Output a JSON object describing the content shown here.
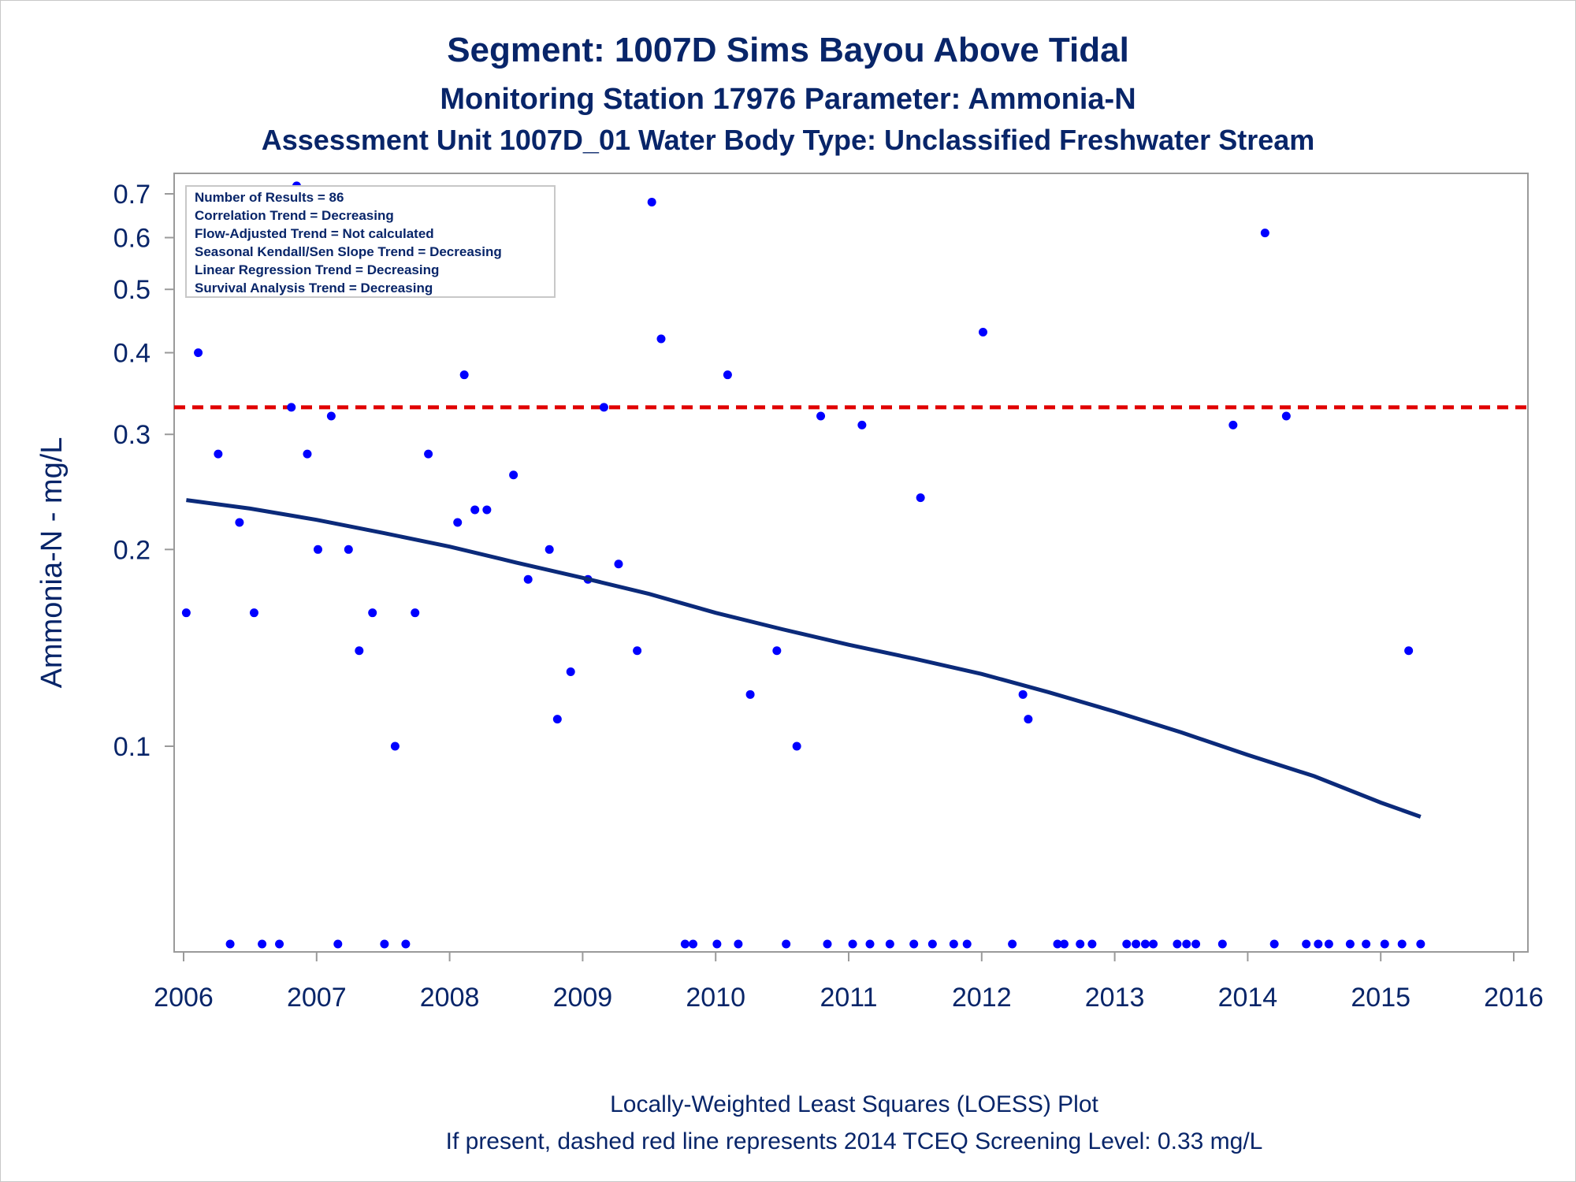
{
  "titles": {
    "line1": "Segment: 1007D  Sims Bayou Above Tidal",
    "line2": "Monitoring Station 17976 Parameter: Ammonia-N",
    "line3": "Assessment Unit 1007D_01   Water Body Type: Unclassified Freshwater Stream"
  },
  "stats_box": [
    "Number of Results = 86",
    "Correlation Trend = Decreasing",
    "Flow-Adjusted Trend = Not calculated",
    "Seasonal Kendall/Sen Slope Trend = Decreasing",
    "Linear Regression Trend = Decreasing",
    "Survival Analysis Trend = Decreasing"
  ],
  "footnotes": {
    "line1": "Locally-Weighted Least Squares (LOESS) Plot",
    "line2": "If present, dashed red line represents 2014 TCEQ Screening Level: 0.33 mg/L"
  },
  "colors": {
    "text": "#082569",
    "points": "#0000ff",
    "loess": "#0b2a7a",
    "screening": "#e00000",
    "frame": "#9a9a9a"
  },
  "chart_data": {
    "type": "scatter",
    "ylabel": "Ammonia-N - mg/L",
    "xlabel": "",
    "y_scale": "log",
    "ylim": [
      0.05,
      0.75
    ],
    "xlim": [
      2006,
      2016
    ],
    "y_ticks": [
      0.1,
      0.2,
      0.3,
      0.4,
      0.5,
      0.6,
      0.7
    ],
    "y_tick_labels": [
      "0.1",
      "0.2",
      "0.3",
      "0.4",
      "0.5",
      "0.6",
      "0.7"
    ],
    "x_ticks": [
      2006,
      2007,
      2008,
      2009,
      2010,
      2011,
      2012,
      2013,
      2014,
      2015,
      2016
    ],
    "x_tick_labels": [
      "2006",
      "2007",
      "2008",
      "2009",
      "2010",
      "2011",
      "2012",
      "2013",
      "2014",
      "2015",
      "2016"
    ],
    "screening_level": 0.33,
    "points": [
      {
        "x": 2006.02,
        "y": 0.16
      },
      {
        "x": 2006.11,
        "y": 0.4
      },
      {
        "x": 2006.26,
        "y": 0.28
      },
      {
        "x": 2006.42,
        "y": 0.22
      },
      {
        "x": 2006.53,
        "y": 0.16
      },
      {
        "x": 2006.81,
        "y": 0.33
      },
      {
        "x": 2006.85,
        "y": 0.72
      },
      {
        "x": 2006.93,
        "y": 0.28
      },
      {
        "x": 2007.01,
        "y": 0.2
      },
      {
        "x": 2007.11,
        "y": 0.32
      },
      {
        "x": 2007.24,
        "y": 0.2
      },
      {
        "x": 2007.32,
        "y": 0.14
      },
      {
        "x": 2007.42,
        "y": 0.16
      },
      {
        "x": 2007.59,
        "y": 0.1
      },
      {
        "x": 2007.74,
        "y": 0.16
      },
      {
        "x": 2007.84,
        "y": 0.28
      },
      {
        "x": 2008.06,
        "y": 0.22
      },
      {
        "x": 2008.11,
        "y": 0.37
      },
      {
        "x": 2008.19,
        "y": 0.23
      },
      {
        "x": 2008.28,
        "y": 0.23
      },
      {
        "x": 2008.48,
        "y": 0.26
      },
      {
        "x": 2008.59,
        "y": 0.18
      },
      {
        "x": 2008.75,
        "y": 0.2
      },
      {
        "x": 2008.81,
        "y": 0.11
      },
      {
        "x": 2008.91,
        "y": 0.13
      },
      {
        "x": 2009.04,
        "y": 0.18
      },
      {
        "x": 2009.16,
        "y": 0.33
      },
      {
        "x": 2009.27,
        "y": 0.19
      },
      {
        "x": 2009.41,
        "y": 0.14
      },
      {
        "x": 2009.52,
        "y": 0.68
      },
      {
        "x": 2009.59,
        "y": 0.42
      },
      {
        "x": 2010.09,
        "y": 0.37
      },
      {
        "x": 2010.26,
        "y": 0.12
      },
      {
        "x": 2010.46,
        "y": 0.14
      },
      {
        "x": 2010.61,
        "y": 0.1
      },
      {
        "x": 2010.79,
        "y": 0.32
      },
      {
        "x": 2011.1,
        "y": 0.31
      },
      {
        "x": 2011.54,
        "y": 0.24
      },
      {
        "x": 2012.01,
        "y": 0.43
      },
      {
        "x": 2012.31,
        "y": 0.12
      },
      {
        "x": 2012.35,
        "y": 0.11
      },
      {
        "x": 2013.89,
        "y": 0.31
      },
      {
        "x": 2014.13,
        "y": 0.61
      },
      {
        "x": 2014.29,
        "y": 0.32
      },
      {
        "x": 2015.21,
        "y": 0.14
      }
    ],
    "below_axis_points_x": [
      2006.35,
      2006.59,
      2006.72,
      2007.16,
      2007.51,
      2007.67,
      2009.77,
      2009.83,
      2010.01,
      2010.17,
      2010.53,
      2010.84,
      2011.03,
      2011.16,
      2011.31,
      2011.49,
      2011.63,
      2011.79,
      2011.89,
      2012.23,
      2012.57,
      2012.62,
      2012.74,
      2012.83,
      2013.09,
      2013.16,
      2013.23,
      2013.29,
      2013.47,
      2013.54,
      2013.61,
      2013.81,
      2014.2,
      2014.44,
      2014.53,
      2014.61,
      2014.77,
      2014.89,
      2015.03,
      2015.16,
      2015.3
    ],
    "loess": [
      {
        "x": 2006.02,
        "y": 0.238
      },
      {
        "x": 2006.5,
        "y": 0.231
      },
      {
        "x": 2007.0,
        "y": 0.222
      },
      {
        "x": 2007.5,
        "y": 0.212
      },
      {
        "x": 2008.0,
        "y": 0.202
      },
      {
        "x": 2008.5,
        "y": 0.191
      },
      {
        "x": 2009.0,
        "y": 0.181
      },
      {
        "x": 2009.5,
        "y": 0.171
      },
      {
        "x": 2010.0,
        "y": 0.16
      },
      {
        "x": 2010.5,
        "y": 0.151
      },
      {
        "x": 2011.0,
        "y": 0.143
      },
      {
        "x": 2011.5,
        "y": 0.136
      },
      {
        "x": 2012.0,
        "y": 0.129
      },
      {
        "x": 2012.5,
        "y": 0.121
      },
      {
        "x": 2013.0,
        "y": 0.113
      },
      {
        "x": 2013.5,
        "y": 0.105
      },
      {
        "x": 2014.0,
        "y": 0.097
      },
      {
        "x": 2014.5,
        "y": 0.09
      },
      {
        "x": 2015.0,
        "y": 0.082
      },
      {
        "x": 2015.3,
        "y": 0.078
      }
    ]
  }
}
